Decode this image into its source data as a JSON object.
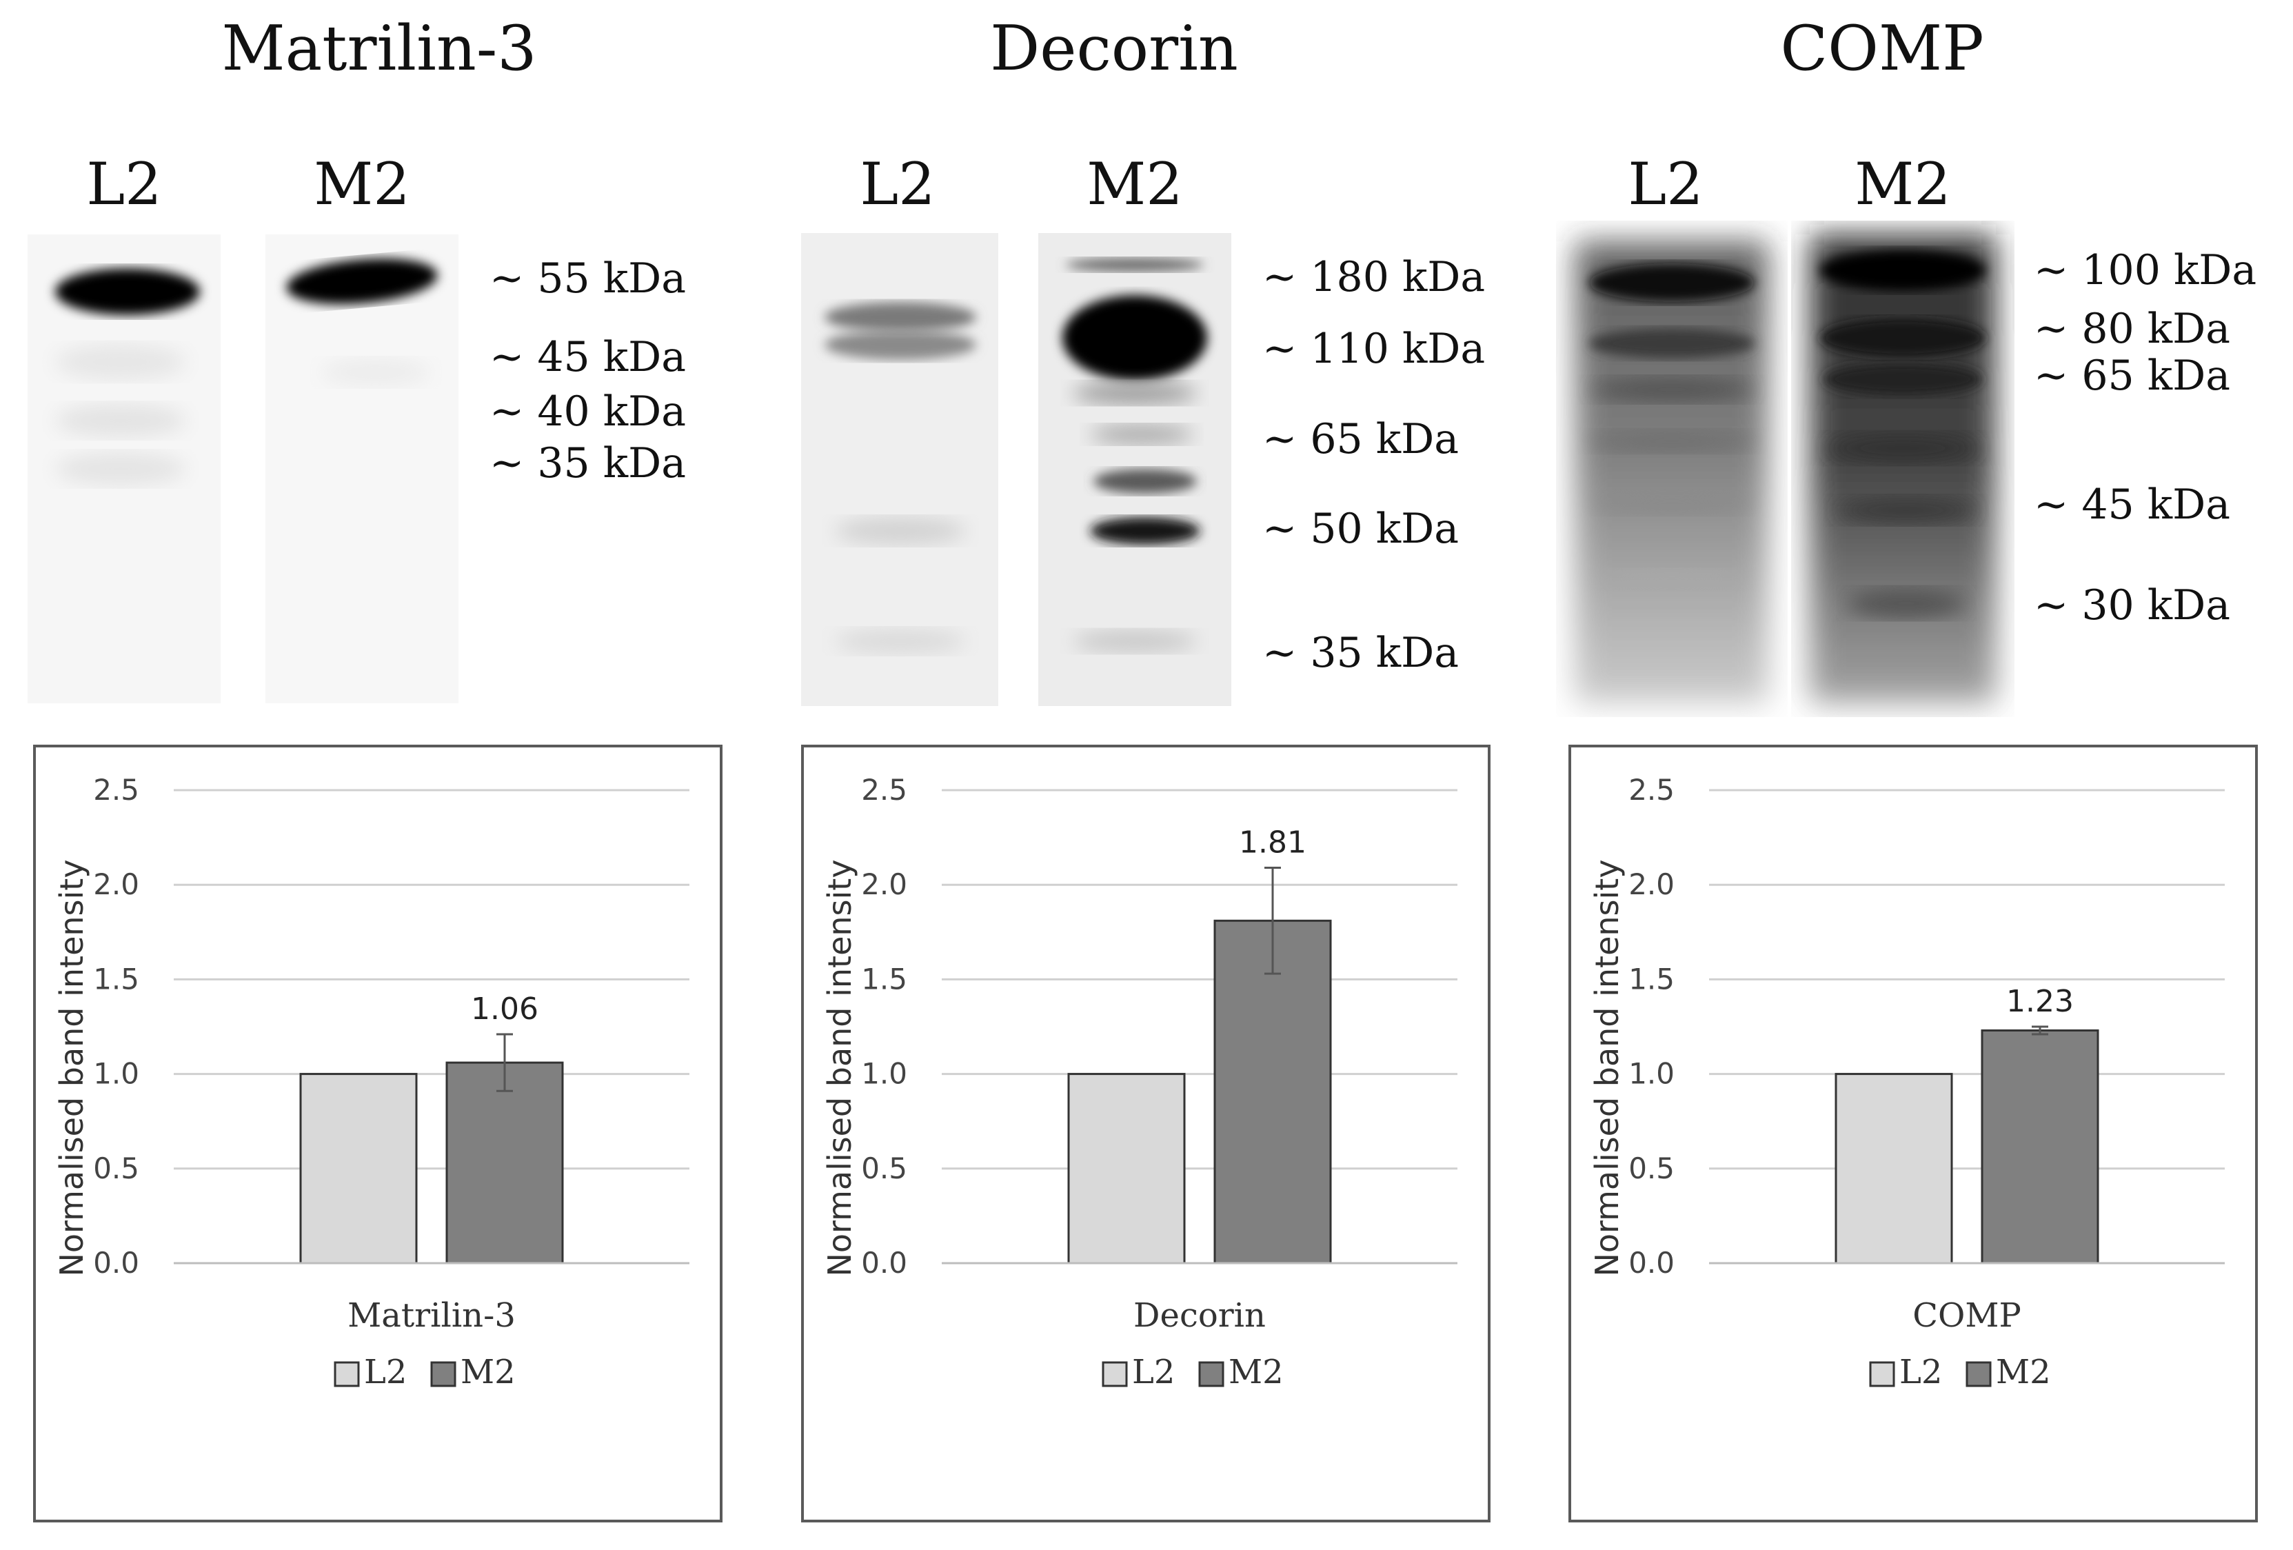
{
  "colors": {
    "l2_fill": "#d9d9d9",
    "m2_fill": "#808080",
    "bar_stroke": "#333333",
    "grid": "#d0d0d0",
    "box_border": "#5a5a5a"
  },
  "panels": [
    {
      "title": "Matrilin-3",
      "lanes": [
        "L2",
        "M2"
      ],
      "markers": [
        "~ 55 kDa",
        "~ 45 kDa",
        "~ 40 kDa",
        "~ 35 kDa"
      ]
    },
    {
      "title": "Decorin",
      "lanes": [
        "L2",
        "M2"
      ],
      "markers": [
        "~ 180 kDa",
        "~ 110 kDa",
        "~ 65 kDa",
        "~ 50 kDa",
        "~ 35 kDa"
      ]
    },
    {
      "title": "COMP",
      "lanes": [
        "L2",
        "M2"
      ],
      "markers": [
        "~ 100 kDa",
        "~ 80 kDa",
        "~ 65 kDa",
        "~ 45 kDa",
        "~ 30 kDa"
      ]
    }
  ],
  "chart_data": [
    {
      "type": "bar",
      "title": "",
      "categories": [
        "Matrilin-3"
      ],
      "series": [
        {
          "name": "L2",
          "values": [
            1.0
          ]
        },
        {
          "name": "M2",
          "values": [
            1.06
          ],
          "error": [
            0.15
          ],
          "label": "1.06"
        }
      ],
      "xlabel": "Matrilin-3",
      "ylabel": "Normalised band intensity",
      "ylim": [
        0,
        2.5
      ],
      "yticks": [
        "0.0",
        "0.5",
        "1.0",
        "1.5",
        "2.0",
        "2.5"
      ],
      "legend": [
        "L2",
        "M2"
      ],
      "legend_position": "bottom",
      "grid": true
    },
    {
      "type": "bar",
      "title": "",
      "categories": [
        "Decorin"
      ],
      "series": [
        {
          "name": "L2",
          "values": [
            1.0
          ]
        },
        {
          "name": "M2",
          "values": [
            1.81
          ],
          "error": [
            0.28
          ],
          "label": "1.81"
        }
      ],
      "xlabel": "Decorin",
      "ylabel": "Normalised band intensity",
      "ylim": [
        0,
        2.5
      ],
      "yticks": [
        "0.0",
        "0.5",
        "1.0",
        "1.5",
        "2.0",
        "2.5"
      ],
      "legend": [
        "L2",
        "M2"
      ],
      "legend_position": "bottom",
      "grid": true
    },
    {
      "type": "bar",
      "title": "",
      "categories": [
        "COMP"
      ],
      "series": [
        {
          "name": "L2",
          "values": [
            1.0
          ]
        },
        {
          "name": "M2",
          "values": [
            1.23
          ],
          "error": [
            0.02
          ],
          "label": "1.23"
        }
      ],
      "xlabel": "COMP",
      "ylabel": "Normalised band intensity",
      "ylim": [
        0,
        2.5
      ],
      "yticks": [
        "0.0",
        "0.5",
        "1.0",
        "1.5",
        "2.0",
        "2.5"
      ],
      "legend": [
        "L2",
        "M2"
      ],
      "legend_position": "bottom",
      "grid": true
    }
  ]
}
